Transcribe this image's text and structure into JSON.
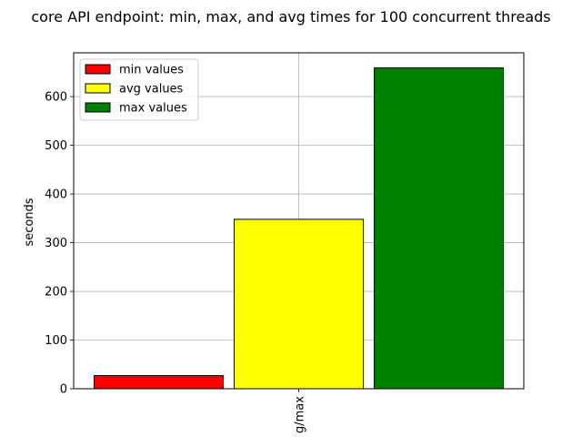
{
  "chart_data": {
    "type": "bar",
    "title": "core API endpoint: min, max, and avg times for 100 concurrent threads",
    "ylabel": "seconds",
    "xlabel": "",
    "categories": [
      "min/avg/max"
    ],
    "x_tick_labels": [
      "g/max"
    ],
    "ylim": [
      0,
      690
    ],
    "yticks": [
      0,
      100,
      200,
      300,
      400,
      500,
      600
    ],
    "grid": true,
    "legend_position": "top-left",
    "series": [
      {
        "name": "min values",
        "values": [
          27
        ],
        "color": "#ff0000"
      },
      {
        "name": "avg values",
        "values": [
          348
        ],
        "color": "#ffff00"
      },
      {
        "name": "max values",
        "values": [
          659
        ],
        "color": "#008000"
      }
    ]
  }
}
